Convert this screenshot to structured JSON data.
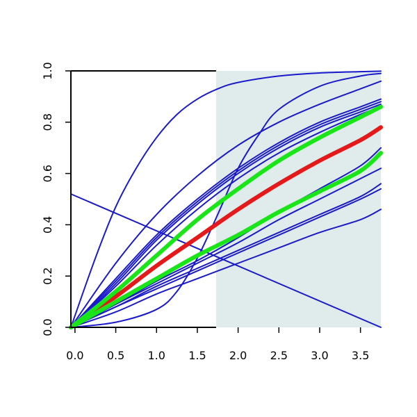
{
  "chart_data": {
    "type": "line",
    "title": "",
    "xlabel": "",
    "ylabel": "",
    "xlim": [
      -0.05,
      3.75
    ],
    "ylim": [
      0,
      1
    ],
    "x_ticks": [
      "0.0",
      "0.5",
      "1.0",
      "1.5",
      "2.0",
      "2.5",
      "3.0",
      "3.5"
    ],
    "y_ticks": [
      "0.0",
      "0.2",
      "0.4",
      "0.6",
      "0.8",
      "1.0"
    ],
    "shaded_region": {
      "x_from": 1.73,
      "x_to": 3.75,
      "color": "#e0ecec"
    },
    "grid": false,
    "legend": "none",
    "colors": {
      "blue": "#1a1acc",
      "red": "#e51919",
      "green": "#19e519",
      "axis": "#000000"
    },
    "series": [
      {
        "color": "#1a1acc",
        "width": 2,
        "style": "fast-saturating",
        "x": [
          -0.05,
          0.25,
          0.5,
          0.75,
          1.0,
          1.25,
          1.5,
          1.75,
          2.0,
          2.5,
          3.0,
          3.5,
          3.75
        ],
        "y": [
          0,
          0.27,
          0.47,
          0.62,
          0.74,
          0.83,
          0.89,
          0.93,
          0.955,
          0.98,
          0.992,
          0.997,
          0.999
        ]
      },
      {
        "color": "#1a1acc",
        "width": 2,
        "style": "sigmoid",
        "x": [
          -0.05,
          0.5,
          1.0,
          1.25,
          1.5,
          1.75,
          2.0,
          2.25,
          2.5,
          3.0,
          3.5,
          3.75
        ],
        "y": [
          0,
          0.02,
          0.07,
          0.14,
          0.27,
          0.44,
          0.62,
          0.75,
          0.85,
          0.94,
          0.98,
          0.99
        ]
      },
      {
        "color": "#1a1acc",
        "width": 2,
        "style": "moderate",
        "x": [
          -0.05,
          0.5,
          1.0,
          1.5,
          2.0,
          2.5,
          3.0,
          3.5,
          3.75
        ],
        "y": [
          0,
          0.25,
          0.44,
          0.59,
          0.71,
          0.8,
          0.87,
          0.93,
          0.96
        ]
      },
      {
        "color": "#1a1acc",
        "width": 2,
        "style": "decreasing-line",
        "x": [
          -0.05,
          3.75
        ],
        "y": [
          0.52,
          0.0
        ]
      },
      {
        "color": "#1a1acc",
        "width": 2,
        "x": [
          -0.05,
          0.5,
          1.0,
          1.5,
          2.0,
          2.5,
          3.0,
          3.5,
          3.75
        ],
        "y": [
          0,
          0.19,
          0.36,
          0.5,
          0.62,
          0.72,
          0.8,
          0.86,
          0.89
        ]
      },
      {
        "color": "#1a1acc",
        "width": 2,
        "x": [
          -0.05,
          0.5,
          1.0,
          1.5,
          2.0,
          2.5,
          3.0,
          3.5,
          3.75
        ],
        "y": [
          0,
          0.18,
          0.35,
          0.49,
          0.61,
          0.71,
          0.79,
          0.85,
          0.88
        ]
      },
      {
        "color": "#1a1acc",
        "width": 2,
        "x": [
          -0.05,
          0.5,
          1.0,
          1.5,
          2.0,
          2.5,
          3.0,
          3.5,
          3.75
        ],
        "y": [
          0,
          0.17,
          0.34,
          0.48,
          0.6,
          0.7,
          0.78,
          0.84,
          0.87
        ]
      },
      {
        "color": "#1a1acc",
        "width": 2,
        "x": [
          -0.05,
          0.5,
          1.0,
          1.5,
          2.0,
          2.5,
          3.0,
          3.5,
          3.75
        ],
        "y": [
          0,
          0.16,
          0.32,
          0.46,
          0.58,
          0.68,
          0.76,
          0.83,
          0.86
        ]
      },
      {
        "color": "#1a1acc",
        "width": 2,
        "x": [
          -0.05,
          0.5,
          1.0,
          1.5,
          2.0,
          2.5,
          3.0,
          3.5,
          3.75
        ],
        "y": [
          0,
          0.09,
          0.18,
          0.26,
          0.35,
          0.45,
          0.54,
          0.63,
          0.7
        ]
      },
      {
        "color": "#1a1acc",
        "width": 2,
        "x": [
          -0.05,
          0.5,
          1.0,
          1.5,
          2.0,
          2.5,
          3.0,
          3.5,
          3.75
        ],
        "y": [
          0,
          0.09,
          0.17,
          0.25,
          0.33,
          0.42,
          0.5,
          0.58,
          0.62
        ]
      },
      {
        "color": "#1a1acc",
        "width": 2,
        "x": [
          -0.05,
          0.5,
          1.0,
          1.5,
          2.0,
          2.5,
          3.0,
          3.5,
          3.75
        ],
        "y": [
          0,
          0.08,
          0.16,
          0.23,
          0.3,
          0.37,
          0.44,
          0.51,
          0.56
        ]
      },
      {
        "color": "#1a1acc",
        "width": 2,
        "x": [
          -0.05,
          0.5,
          1.0,
          1.5,
          2.0,
          2.5,
          3.0,
          3.5,
          3.75
        ],
        "y": [
          0,
          0.08,
          0.15,
          0.22,
          0.29,
          0.36,
          0.43,
          0.5,
          0.54
        ]
      },
      {
        "color": "#1a1acc",
        "width": 2,
        "x": [
          -0.05,
          0.5,
          1.0,
          1.5,
          2.0,
          2.5,
          3.0,
          3.5,
          3.75
        ],
        "y": [
          0,
          0.06,
          0.13,
          0.19,
          0.25,
          0.31,
          0.37,
          0.42,
          0.46
        ]
      },
      {
        "color": "#e51919",
        "width": 6,
        "x": [
          -0.05,
          0.5,
          1.0,
          1.5,
          2.0,
          2.5,
          3.0,
          3.5,
          3.75
        ],
        "y": [
          0,
          0.12,
          0.24,
          0.35,
          0.46,
          0.56,
          0.65,
          0.73,
          0.78
        ]
      },
      {
        "color": "#19e519",
        "width": 6,
        "x": [
          -0.05,
          0.5,
          1.0,
          1.5,
          2.0,
          2.5,
          3.0,
          3.5,
          3.75
        ],
        "y": [
          0,
          0.14,
          0.28,
          0.42,
          0.54,
          0.65,
          0.74,
          0.82,
          0.86
        ]
      },
      {
        "color": "#19e519",
        "width": 6,
        "x": [
          -0.05,
          0.5,
          1.0,
          1.5,
          2.0,
          2.5,
          3.0,
          3.5,
          3.75
        ],
        "y": [
          0,
          0.1,
          0.19,
          0.28,
          0.36,
          0.45,
          0.53,
          0.61,
          0.68
        ]
      }
    ]
  }
}
